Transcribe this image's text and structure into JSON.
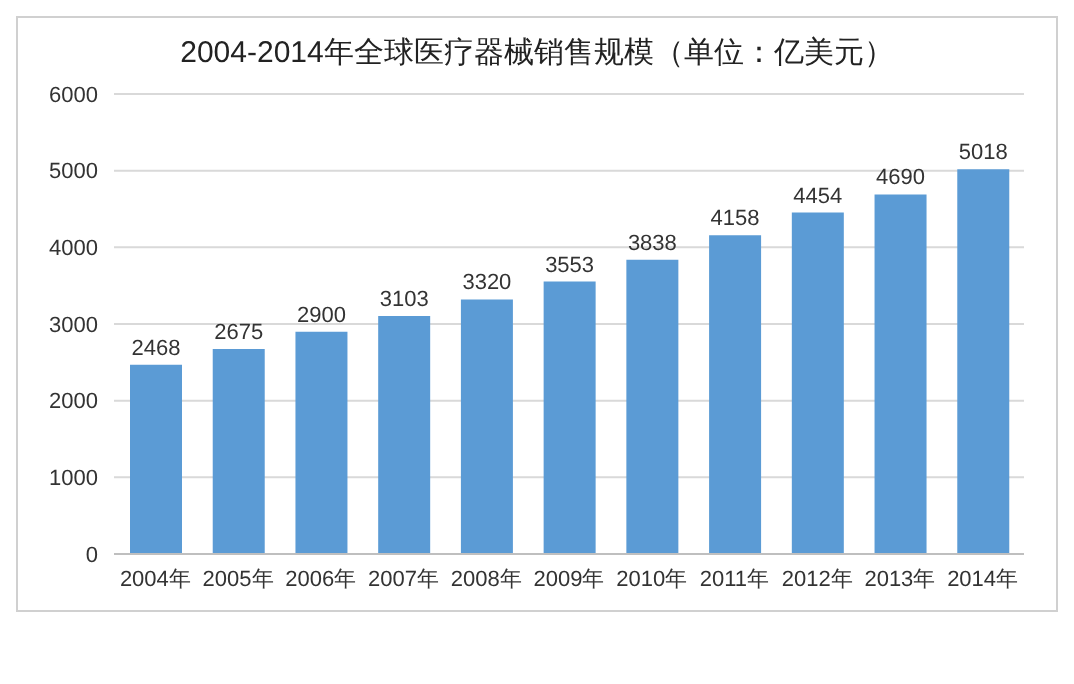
{
  "chart_data": {
    "type": "bar",
    "title": "2004-2014年全球医疗器械销售规模（单位：亿美元）",
    "categories": [
      "2004年",
      "2005年",
      "2006年",
      "2007年",
      "2008年",
      "2009年",
      "2010年",
      "2011年",
      "2012年",
      "2013年",
      "2014年"
    ],
    "values": [
      2468,
      2675,
      2900,
      3103,
      3320,
      3553,
      3838,
      4158,
      4454,
      4690,
      5018
    ],
    "color": "#5b9bd5",
    "ylim": [
      0,
      6000
    ],
    "yticks": [
      0,
      1000,
      2000,
      3000,
      4000,
      5000,
      6000
    ],
    "grid": "y",
    "data_labels": true
  }
}
